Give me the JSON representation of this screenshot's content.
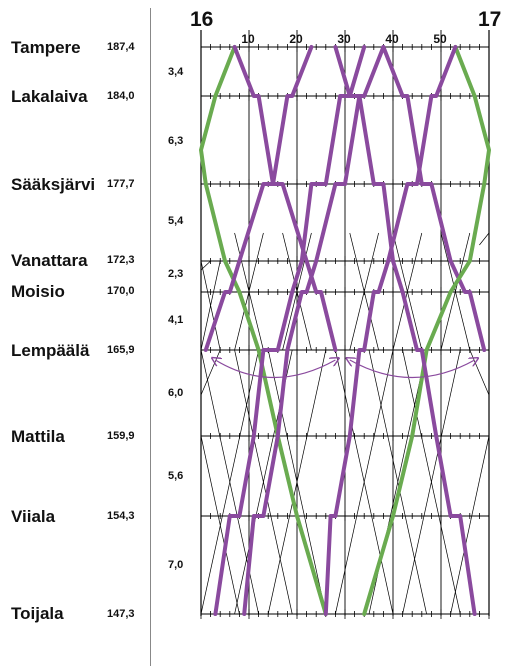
{
  "hours": [
    "16",
    "17"
  ],
  "minute_labels": [
    "10",
    "20",
    "30",
    "40",
    "50"
  ],
  "stations": [
    {
      "name": "Tampere",
      "km": "187,4"
    },
    {
      "name": "Lakalaiva",
      "km": "184,0"
    },
    {
      "name": "Sääksjärvi",
      "km": "177,7"
    },
    {
      "name": "Vanattara",
      "km": "172,3"
    },
    {
      "name": "Moisio",
      "km": "170,0"
    },
    {
      "name": "Lempäälä",
      "km": "165,9"
    },
    {
      "name": "Mattila",
      "km": "159,9"
    },
    {
      "name": "Viiala",
      "km": "154,3"
    },
    {
      "name": "Toijala",
      "km": "147,3"
    }
  ],
  "segment_distances": [
    "3,4",
    "6,3",
    "5,4",
    "2,3",
    "4,1",
    "6,0",
    "5,6",
    "7,0"
  ],
  "colors": {
    "purple": "#8a4a9e",
    "green": "#6aab50",
    "grid": "#000000"
  }
}
